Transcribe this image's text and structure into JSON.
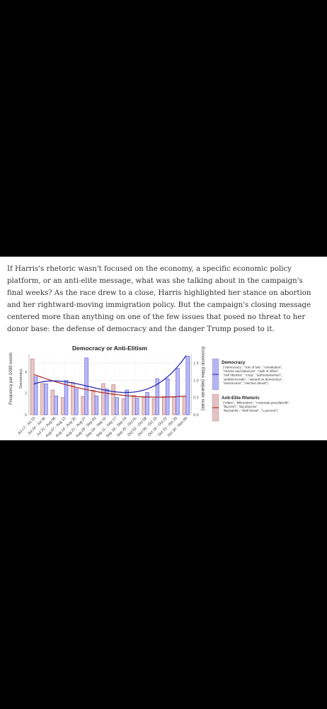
{
  "article": {
    "paragraph": "If Harris's rhetoric wasn't focused on the economy, a specific economic policy platform, or an anti-elite message, what was she talking about in the campaign's final weeks? As the race drew to a close, Harris highlighted her stance on abortion and her rightward-moving immigration policy. But the campaign's closing message centered more than anything on one of the few issues that posed no threat to her donor base: the defense of democracy and the danger Trump posed to it."
  },
  "chart_data": {
    "type": "bar",
    "title": "Democracy or Anti-Elitism",
    "ylabel": "Frequency per 1000 words",
    "ylabel_left_inner": "Democracy",
    "ylabel_right": "Economic Elites (separate scale)",
    "categories": [
      "Jul 17 - Jul 23",
      "Jul 24 - Jul 30",
      "Jul 31 - Aug 06",
      "Aug 07 - Aug 13",
      "Aug 14 - Aug 20",
      "Aug 21 - Aug 27",
      "Aug 28 - Sep 03",
      "Sep 04 - Sep 10",
      "Sep 11 - Sep 17",
      "Sep 18 - Sep 24",
      "Sep 25 - Oct 01",
      "Oct 02 - Oct 08",
      "Oct 09 - Oct 15",
      "Oct 16 - Oct 22",
      "Oct 23 - Oct 29",
      "Oct 30 - Nov 05"
    ],
    "left_ticks": [
      "0",
      "2",
      "4"
    ],
    "left_ylim": [
      0,
      5.6
    ],
    "right_ticks": [
      "0.0",
      "0.5",
      "1.0",
      "1.5"
    ],
    "right_ylim": [
      0,
      1.75
    ],
    "series": [
      {
        "name": "Democracy",
        "color": "#7b7bf0",
        "axis": "right",
        "values": [
          1.1,
          0.9,
          0.55,
          1.0,
          0.75,
          1.65,
          0.55,
          0.75,
          0.5,
          0.72,
          0.48,
          0.65,
          1.05,
          1.05,
          1.35,
          1.7
        ]
      },
      {
        "name": "Anti-Elite Rhetoric",
        "color": "#d9a3a3",
        "axis": "left",
        "values": [
          5.2,
          2.9,
          2.3,
          1.6,
          3.0,
          1.7,
          2.3,
          2.9,
          2.8,
          1.5,
          1.8,
          1.6,
          1.5,
          1.7,
          1.6,
          1.6
        ]
      }
    ],
    "trend_lines": [
      {
        "name": "Democracy",
        "color": "#2b2bb0"
      },
      {
        "name": "Anti-Elite Rhetoric",
        "color": "#b03030"
      }
    ],
    "legend": [
      {
        "title": "Democracy",
        "text": "(\"democracy\", \"rule of law\", \"constitution\", \"checks and balances\", \"oath of office\", \"civil liberties\", \"coup\", \"authoritarianism\", \"antidemocratic\", \"assault on democracy\", \"insurrection\", \"election denial\")",
        "lines": [
          "(\"democracy\", \"rule of law\", \"constitution\",",
          "\"checks and balances\", \"oath of office\",",
          "\"civil liberties\", \"coup\", \"authoritarianism\",",
          "\"antidemocratic\", \"assault on democracy\",",
          "\"insurrection\", \"election denial\")"
        ],
        "fill": "#b3b3f5",
        "stroke": "#3c3cd0"
      },
      {
        "title": "Anti-Elite Rhetoric",
        "text": "(\"elites\", \"billionaires\", \"corporate greed/profit\", \"big tech\", \"big pharma\", \"big banks\", \"Wall Street\", \"1 percent\")",
        "lines": [
          "(\"elites\", \"billionaires\", \"corporate greed/profit\",",
          "\"big tech\", \"big pharma\",",
          "\"big banks\", \"Wall Street\", \"1 percent\")"
        ],
        "fill": "#e6c0c0",
        "stroke": "#b03030"
      }
    ],
    "legend_position": "right",
    "grid": true
  }
}
